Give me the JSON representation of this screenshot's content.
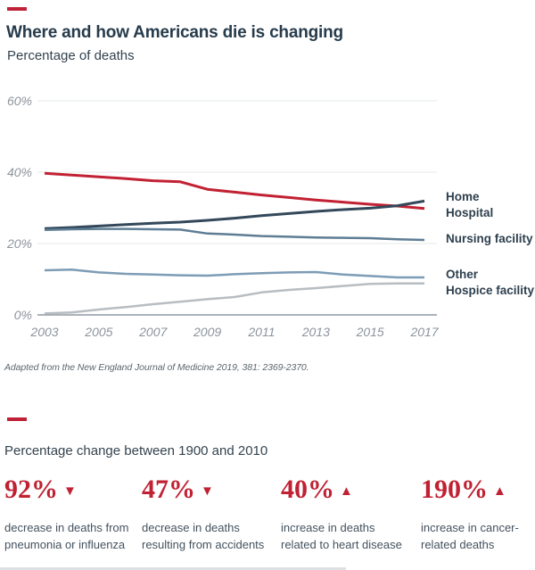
{
  "header": {
    "title": "Where and how Americans die is changing",
    "subtitle": "Percentage of deaths"
  },
  "chart_data": {
    "type": "line",
    "title": "Where and how Americans die is changing",
    "ylabel": "Percentage of deaths",
    "xlabel": "",
    "x": [
      2003,
      2004,
      2005,
      2006,
      2007,
      2008,
      2009,
      2010,
      2011,
      2012,
      2013,
      2014,
      2015,
      2016,
      2017
    ],
    "x_tick_labels": [
      "2003",
      "2005",
      "2007",
      "2009",
      "2011",
      "2013",
      "2015",
      "2017"
    ],
    "y_ticks": [
      {
        "label": "0%",
        "value": 0
      },
      {
        "label": "20%",
        "value": 20
      },
      {
        "label": "40%",
        "value": 40
      },
      {
        "label": "60%",
        "value": 60
      }
    ],
    "ylim": [
      0,
      62
    ],
    "grid": "horizontal",
    "legend_position": "right",
    "series": [
      {
        "name": "Hospital",
        "color": "#c22133",
        "line_width": 3,
        "values": [
          39.7,
          39.2,
          38.7,
          38.2,
          37.6,
          37.3,
          35.2,
          34.4,
          33.6,
          32.9,
          32.2,
          31.6,
          31.0,
          30.5,
          29.8
        ]
      },
      {
        "name": "Home",
        "color": "#33485a",
        "line_width": 3,
        "values": [
          24.2,
          24.5,
          24.9,
          25.3,
          25.7,
          26.0,
          26.5,
          27.1,
          27.8,
          28.4,
          29.0,
          29.5,
          29.9,
          30.6,
          31.9
        ]
      },
      {
        "name": "Nursing facility",
        "color": "#5e7d94",
        "line_width": 2.5,
        "values": [
          23.8,
          24.0,
          24.1,
          24.1,
          24.0,
          23.9,
          22.8,
          22.5,
          22.1,
          21.9,
          21.7,
          21.6,
          21.5,
          21.2,
          21.0
        ]
      },
      {
        "name": "Other",
        "color": "#7d9cb5",
        "line_width": 2.5,
        "values": [
          12.5,
          12.7,
          11.9,
          11.5,
          11.3,
          11.1,
          11.0,
          11.4,
          11.7,
          11.9,
          12.0,
          11.3,
          10.9,
          10.5,
          10.5
        ]
      },
      {
        "name": "Hospice facility",
        "color": "#b8bdc2",
        "line_width": 2.5,
        "values": [
          0.4,
          0.7,
          1.5,
          2.2,
          3.0,
          3.7,
          4.4,
          5.0,
          6.3,
          7.0,
          7.5,
          8.1,
          8.7,
          8.8,
          8.8
        ]
      }
    ]
  },
  "footnote": "Adapted from the New England Journal of Medicine 2019, 381: 2369-2370.",
  "section2": {
    "heading": "Percentage change between 1900 and 2010"
  },
  "stats": {
    "items": [
      {
        "value": "92%",
        "arrow": "▼",
        "direction": "down",
        "description": "decrease in deaths from pneumonia or influenza"
      },
      {
        "value": "47%",
        "arrow": "▼",
        "direction": "down",
        "description": "decrease in deaths resulting from accidents"
      },
      {
        "value": "40%",
        "arrow": "▲",
        "direction": "up",
        "description": "increase in deaths related to heart disease"
      },
      {
        "value": "190%",
        "arrow": "▲",
        "direction": "up",
        "description": "increase in cancer-related deaths"
      }
    ]
  },
  "colors": {
    "accent_red": "#bf2137",
    "title_dark": "#263b4c",
    "axis_gray": "#8b949c",
    "grid_gray": "#e6e8ea",
    "axis_line": "#8f99a2"
  }
}
